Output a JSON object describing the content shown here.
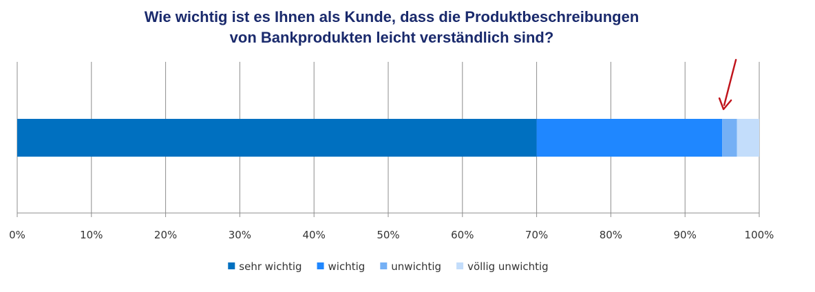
{
  "chart_data": {
    "type": "bar",
    "orientation": "horizontal",
    "stacked": "percent",
    "title_lines": [
      "Wie wichtig ist es Ihnen als Kunde, dass die Produktbeschreibungen",
      "von Bankprodukten leicht verständlich sind?"
    ],
    "categories": [
      ""
    ],
    "series": [
      {
        "name": "sehr wichtig",
        "values": [
          70
        ],
        "color": "#0070c0"
      },
      {
        "name": "wichtig",
        "values": [
          25
        ],
        "color": "#1f87ff"
      },
      {
        "name": "unwichtig",
        "values": [
          2
        ],
        "color": "#75b0f5"
      },
      {
        "name": "völlig unwichtig",
        "values": [
          3
        ],
        "color": "#c3ddfb"
      }
    ],
    "xlim": [
      0,
      100
    ],
    "x_ticks": [
      "0%",
      "10%",
      "20%",
      "30%",
      "40%",
      "50%",
      "60%",
      "70%",
      "80%",
      "90%",
      "100%"
    ],
    "grid": "vertical",
    "legend": "bottom",
    "annotation": {
      "type": "arrow",
      "target_percent": 95,
      "color": "#c0141c"
    }
  }
}
